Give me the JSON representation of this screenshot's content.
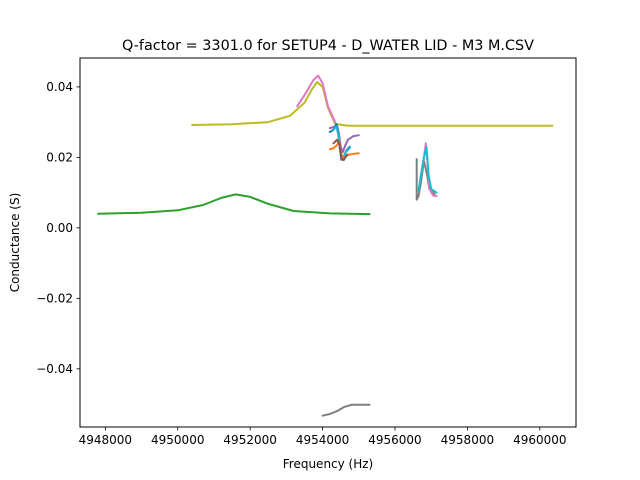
{
  "chart_data": {
    "type": "line",
    "title": "Q-factor = 3301.0 for SETUP4 - D_WATER LID - M3 M.CSV",
    "xlabel": "Frequency (Hz)",
    "ylabel": "Conductance (S)",
    "xlim": [
      4947300,
      4961000
    ],
    "ylim": [
      -0.0565,
      0.0482
    ],
    "xticks": [
      4948000,
      4950000,
      4952000,
      4954000,
      4956000,
      4958000,
      4960000
    ],
    "yticks": [
      -0.04,
      -0.02,
      0.0,
      0.02,
      0.04
    ],
    "xtick_labels": [
      "4948000",
      "4950000",
      "4952000",
      "4954000",
      "4956000",
      "4958000",
      "4960000"
    ],
    "ytick_labels": [
      "−0.04",
      "−0.02",
      "0.00",
      "0.02",
      "0.04"
    ],
    "grid": false,
    "legend": "none",
    "series": [
      {
        "color": "#bcbd22",
        "x": [
          4950400,
          4951500,
          4952500,
          4953100,
          4953500,
          4953700,
          4953850,
          4954000,
          4954150,
          4954350,
          4954700,
          4955500,
          4957000,
          4958500,
          4960350
        ],
        "y": [
          0.0292,
          0.0294,
          0.03,
          0.0318,
          0.0355,
          0.0392,
          0.0414,
          0.04,
          0.034,
          0.0295,
          0.029,
          0.029,
          0.029,
          0.029,
          0.029
        ]
      },
      {
        "color": "#e377c2",
        "x": [
          4953300,
          4953550,
          4953750,
          4953880,
          4954000,
          4954150,
          4954350
        ],
        "y": [
          0.0345,
          0.0385,
          0.042,
          0.0432,
          0.041,
          0.0345,
          0.03
        ]
      },
      {
        "color": "#2ca02c",
        "x": [
          4947800,
          4949000,
          4950000,
          4950700,
          4951200,
          4951600,
          4952000,
          4952500,
          4953200,
          4954200,
          4955300
        ],
        "y": [
          0.004,
          0.0043,
          0.005,
          0.0065,
          0.0085,
          0.0095,
          0.0088,
          0.0068,
          0.0048,
          0.0041,
          0.0039
        ]
      },
      {
        "color": "#9467bd",
        "x": [
          4954200,
          4954300,
          4954400,
          4954450,
          4954500,
          4954560,
          4954620,
          4954700,
          4954850,
          4955000
        ],
        "y": [
          0.0283,
          0.0286,
          0.029,
          0.0268,
          0.023,
          0.0215,
          0.0232,
          0.025,
          0.026,
          0.0263
        ]
      },
      {
        "color": "#1f77b4",
        "x": [
          4954200,
          4954300,
          4954380,
          4954430,
          4954480,
          4954520,
          4954580,
          4954650,
          4954750
        ],
        "y": [
          0.0272,
          0.0278,
          0.0295,
          0.027,
          0.0225,
          0.0193,
          0.02,
          0.0218,
          0.023
        ]
      },
      {
        "color": "#17becf",
        "x": [
          4954300,
          4954380,
          4954440,
          4954500,
          4954560,
          4954650,
          4954750
        ],
        "y": [
          0.0278,
          0.0288,
          0.0262,
          0.0205,
          0.0198,
          0.0216,
          0.0226
        ]
      },
      {
        "color": "#ff7f0e",
        "x": [
          4954200,
          4954300,
          4954400,
          4954450,
          4954500,
          4954550,
          4954600,
          4954700,
          4954850,
          4955000
        ],
        "y": [
          0.0223,
          0.0226,
          0.0235,
          0.0245,
          0.022,
          0.0195,
          0.02,
          0.0207,
          0.021,
          0.0212
        ]
      },
      {
        "color": "#8c564b",
        "x": [
          4954300,
          4954400,
          4954470,
          4954520,
          4954580,
          4954680
        ],
        "y": [
          0.024,
          0.025,
          0.0235,
          0.0198,
          0.0192,
          0.0208
        ]
      },
      {
        "color": "#7f7f7f",
        "x": [
          4956600,
          4956600,
          4956650,
          4956720,
          4956800,
          4956880,
          4956950,
          4957100
        ],
        "y": [
          0.0195,
          0.008,
          0.009,
          0.013,
          0.019,
          0.0155,
          0.011,
          0.0095
        ]
      },
      {
        "color": "#e377c2",
        "x": [
          4956700,
          4956780,
          4956850,
          4956900,
          4956950,
          4957050,
          4957150
        ],
        "y": [
          0.014,
          0.0185,
          0.024,
          0.018,
          0.011,
          0.0092,
          0.009
        ]
      },
      {
        "color": "#17becf",
        "x": [
          4956650,
          4956720,
          4956800,
          4956870,
          4956930,
          4957000,
          4957150
        ],
        "y": [
          0.0105,
          0.015,
          0.02,
          0.023,
          0.015,
          0.011,
          0.01
        ]
      },
      {
        "color": "#7f7f7f",
        "x": [
          4954000,
          4954200,
          4954400,
          4954600,
          4954800,
          4955000,
          4955300
        ],
        "y": [
          -0.0533,
          -0.0528,
          -0.052,
          -0.0508,
          -0.0502,
          -0.0502,
          -0.0502
        ]
      }
    ]
  }
}
